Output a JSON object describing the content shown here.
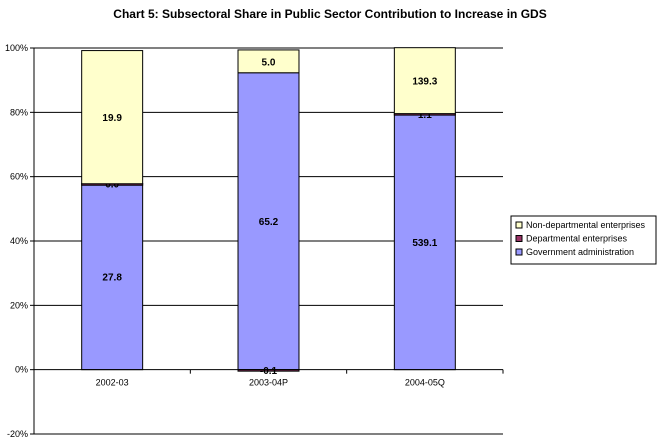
{
  "chart_data": {
    "type": "bar",
    "stacked": true,
    "percent_stacked": true,
    "title": "Chart 5: Subsectoral Share in Public Sector Contribution to Increase in GDS",
    "xlabel": "",
    "ylabel": "",
    "categories": [
      "2002-03",
      "2003-04P",
      "2004-05Q"
    ],
    "ylim": [
      -20,
      100
    ],
    "yticks": [
      -20,
      0,
      20,
      40,
      60,
      80,
      100
    ],
    "ytick_labels": [
      "-20%",
      "0%",
      "20%",
      "40%",
      "60%",
      "80%",
      "100%"
    ],
    "grid": true,
    "legend_position": "right",
    "series": [
      {
        "name": "Government administration",
        "color": "#9999ff",
        "labels": [
          "27.8",
          "65.2",
          "539.1"
        ],
        "share_pct": [
          57.8,
          92.3,
          79.4
        ]
      },
      {
        "name": "Departmental enterprises",
        "color": "#993366",
        "labels": [
          "0.0",
          "-0.1",
          "1.1"
        ],
        "share_pct": [
          0.0,
          -0.1,
          0.2
        ]
      },
      {
        "name": "Non-departmental enterprises",
        "color": "#ffffcc",
        "labels": [
          "19.9",
          "5.0",
          "139.3"
        ],
        "share_pct": [
          41.4,
          7.1,
          20.5
        ]
      }
    ],
    "legend_order": [
      "Non-departmental enterprises",
      "Departmental enterprises",
      "Government administration"
    ]
  }
}
